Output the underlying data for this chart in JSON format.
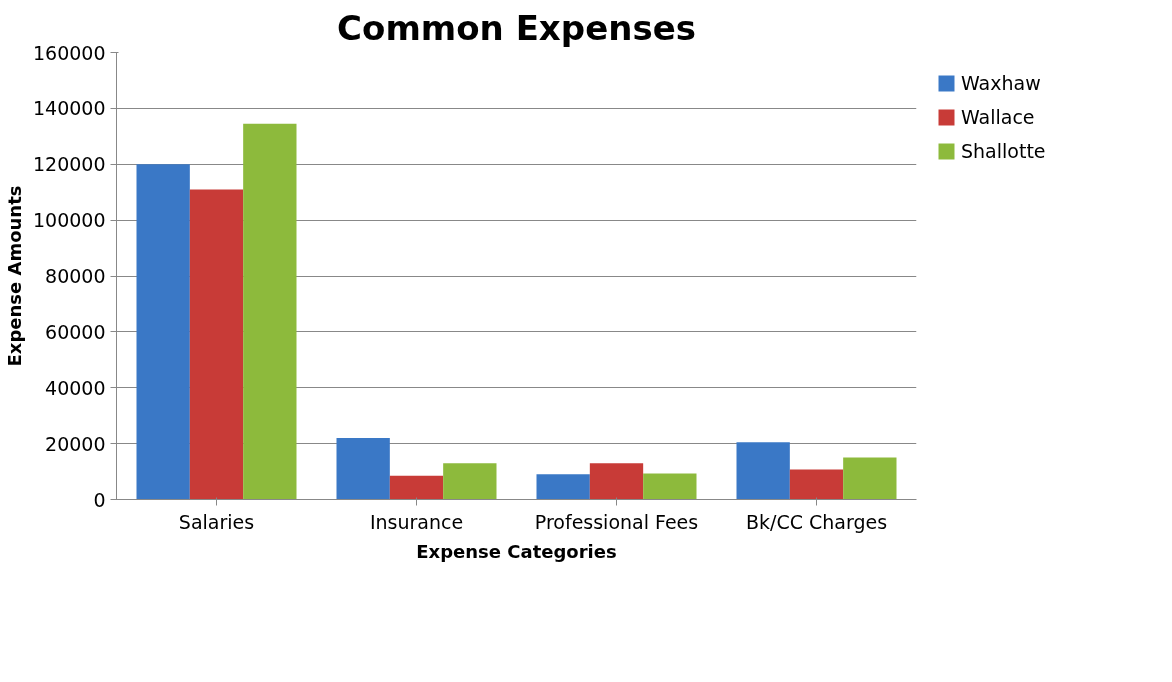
{
  "chart_data": {
    "type": "bar",
    "title": "Common Expenses",
    "xlabel": "Expense Categories",
    "ylabel": "Expense Amounts",
    "categories": [
      "Salaries",
      "Insurance",
      "Professional Fees",
      "Bk/CC Charges"
    ],
    "series": [
      {
        "name": "Waxhaw",
        "color": "#3a78c6",
        "values": [
          120000,
          22000,
          9000,
          20500
        ]
      },
      {
        "name": "Wallace",
        "color": "#c83b37",
        "values": [
          111000,
          8500,
          13000,
          10700
        ]
      },
      {
        "name": "Shallotte",
        "color": "#8dba3c",
        "values": [
          134500,
          13000,
          9300,
          15000
        ]
      }
    ],
    "ylim": [
      0,
      160000
    ],
    "yticks": [
      0,
      20000,
      40000,
      60000,
      80000,
      100000,
      120000,
      140000,
      160000
    ],
    "grid": "y",
    "legend": "right"
  }
}
